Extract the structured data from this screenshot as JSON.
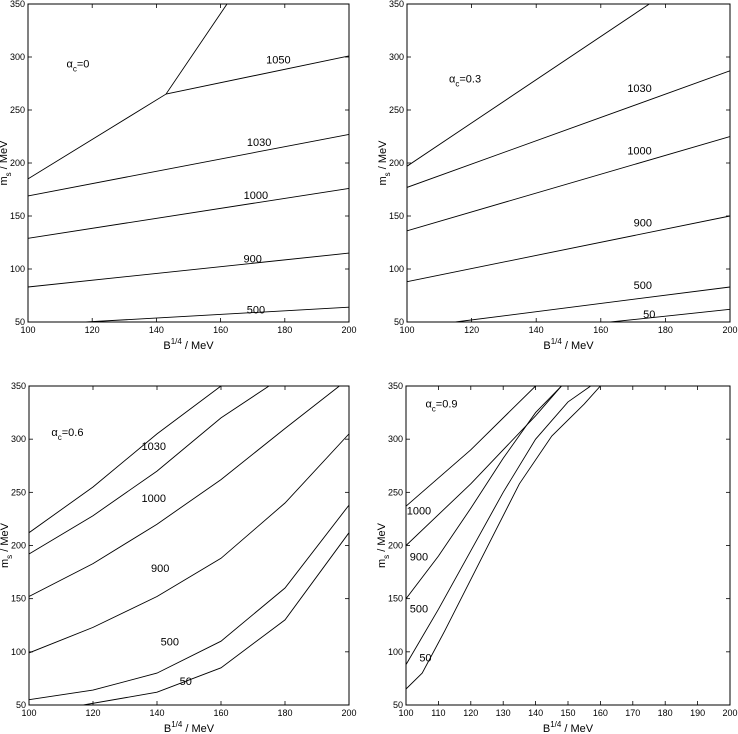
{
  "chart_data": [
    {
      "type": "line",
      "annotation": {
        "symbol": "α",
        "sub": "c",
        "value": "=0"
      },
      "xlabel": {
        "base": "B",
        "sup": "1/4",
        "unit": " / MeV"
      },
      "ylabel": {
        "base": "m",
        "sub": "s",
        "unit": " / MeV"
      },
      "xlim": [
        100,
        200
      ],
      "ylim": [
        50,
        350
      ],
      "xticks": [
        100,
        120,
        140,
        160,
        180,
        200
      ],
      "yticks": [
        50,
        100,
        150,
        200,
        250,
        300,
        350
      ],
      "series": [
        {
          "name": "",
          "points": [
            [
              100,
              185
            ],
            [
              143,
              265
            ],
            [
              162,
              350
            ]
          ]
        },
        {
          "name": "1050",
          "points": [
            [
              143,
              265
            ],
            [
              200,
              301
            ]
          ]
        },
        {
          "name": "1030",
          "points": [
            [
              100,
              169
            ],
            [
              200,
              227
            ]
          ]
        },
        {
          "name": "1000",
          "points": [
            [
              100,
              129
            ],
            [
              200,
              176
            ]
          ]
        },
        {
          "name": "900",
          "points": [
            [
              100,
              83
            ],
            [
              200,
              115
            ]
          ]
        },
        {
          "name": "500",
          "points": [
            [
              118,
              50
            ],
            [
              200,
              64
            ]
          ]
        }
      ],
      "curve_labels": [
        {
          "text": "1050",
          "x": 178,
          "y": 294
        },
        {
          "text": "1030",
          "x": 172,
          "y": 216
        },
        {
          "text": "1000",
          "x": 171,
          "y": 166
        },
        {
          "text": "900",
          "x": 170,
          "y": 106
        },
        {
          "text": "500",
          "x": 171,
          "y": 58
        }
      ],
      "annotation_pos": {
        "x": 112,
        "y": 290
      }
    },
    {
      "type": "line",
      "annotation": {
        "symbol": "α",
        "sub": "c",
        "value": "=0.3"
      },
      "xlabel": {
        "base": "B",
        "sup": "1/4",
        "unit": " / MeV"
      },
      "ylabel": {
        "base": "m",
        "sub": "s",
        "unit": " / MeV"
      },
      "xlim": [
        100,
        200
      ],
      "ylim": [
        50,
        350
      ],
      "xticks": [
        100,
        120,
        140,
        160,
        180,
        200
      ],
      "yticks": [
        50,
        100,
        150,
        200,
        250,
        300,
        350
      ],
      "series": [
        {
          "name": "",
          "points": [
            [
              100,
              197
            ],
            [
              175,
              350
            ]
          ]
        },
        {
          "name": "1030",
          "points": [
            [
              100,
              177
            ],
            [
              200,
              287
            ]
          ]
        },
        {
          "name": "1000",
          "points": [
            [
              100,
              136
            ],
            [
              200,
              225
            ]
          ]
        },
        {
          "name": "900",
          "points": [
            [
              100,
              88
            ],
            [
              200,
              150
            ]
          ]
        },
        {
          "name": "500",
          "points": [
            [
              115,
              50
            ],
            [
              200,
              83
            ]
          ]
        },
        {
          "name": "50",
          "points": [
            [
              163,
              50
            ],
            [
              200,
              62
            ]
          ]
        }
      ],
      "curve_labels": [
        {
          "text": "1030",
          "x": 172,
          "y": 267
        },
        {
          "text": "1000",
          "x": 172,
          "y": 208
        },
        {
          "text": "900",
          "x": 173,
          "y": 140
        },
        {
          "text": "500",
          "x": 173,
          "y": 81
        },
        {
          "text": "50",
          "x": 175,
          "y": 54
        }
      ],
      "annotation_pos": {
        "x": 113,
        "y": 276
      }
    },
    {
      "type": "line",
      "annotation": {
        "symbol": "α",
        "sub": "c",
        "value": "=0.6"
      },
      "xlabel": {
        "base": "B",
        "sup": "1/4",
        "unit": " / MeV"
      },
      "ylabel": {
        "base": "m",
        "sub": "s",
        "unit": " / MeV"
      },
      "xlim": [
        100,
        200
      ],
      "ylim": [
        50,
        350
      ],
      "xticks": [
        100,
        120,
        140,
        160,
        180,
        200
      ],
      "yticks": [
        50,
        100,
        150,
        200,
        250,
        300,
        350
      ],
      "series": [
        {
          "name": "",
          "points": [
            [
              100,
              212
            ],
            [
              120,
              255
            ],
            [
              140,
              305
            ],
            [
              160,
              350
            ]
          ]
        },
        {
          "name": "1030",
          "points": [
            [
              100,
              192
            ],
            [
              120,
              228
            ],
            [
              140,
              270
            ],
            [
              160,
              320
            ],
            [
              175,
              350
            ]
          ]
        },
        {
          "name": "1000",
          "points": [
            [
              100,
              152
            ],
            [
              120,
              183
            ],
            [
              140,
              220
            ],
            [
              160,
              262
            ],
            [
              180,
              310
            ],
            [
              197,
              350
            ]
          ]
        },
        {
          "name": "900",
          "points": [
            [
              100,
              99
            ],
            [
              120,
              123
            ],
            [
              140,
              152
            ],
            [
              160,
              188
            ],
            [
              180,
              240
            ],
            [
              200,
              305
            ]
          ]
        },
        {
          "name": "500",
          "points": [
            [
              100,
              55
            ],
            [
              120,
              64
            ],
            [
              140,
              80
            ],
            [
              160,
              110
            ],
            [
              180,
              160
            ],
            [
              200,
              238
            ]
          ]
        },
        {
          "name": "50",
          "points": [
            [
              117,
              50
            ],
            [
              140,
              62
            ],
            [
              160,
              85
            ],
            [
              180,
              130
            ],
            [
              200,
              212
            ]
          ]
        }
      ],
      "curve_labels": [
        {
          "text": "1030",
          "x": 139,
          "y": 290
        },
        {
          "text": "1000",
          "x": 139,
          "y": 241
        },
        {
          "text": "900",
          "x": 141,
          "y": 175
        },
        {
          "text": "500",
          "x": 144,
          "y": 106
        },
        {
          "text": "50",
          "x": 149,
          "y": 69
        }
      ],
      "annotation_pos": {
        "x": 107,
        "y": 303
      }
    },
    {
      "type": "line",
      "annotation": {
        "symbol": "α",
        "sub": "c",
        "value": "=0.9"
      },
      "xlabel": {
        "base": "B",
        "sup": "1/4",
        "unit": " / MeV"
      },
      "ylabel": {
        "base": "m",
        "sub": "s",
        "unit": " / MeV"
      },
      "xlim": [
        100,
        200
      ],
      "ylim": [
        50,
        350
      ],
      "xticks": [
        100,
        110,
        120,
        130,
        140,
        150,
        160,
        170,
        180,
        190,
        200
      ],
      "yticks": [
        50,
        100,
        150,
        200,
        250,
        300,
        350
      ],
      "series": [
        {
          "name": "",
          "points": [
            [
              100,
              237
            ],
            [
              120,
              290
            ],
            [
              140,
              350
            ]
          ]
        },
        {
          "name": "1000",
          "points": [
            [
              100,
              200
            ],
            [
              120,
              258
            ],
            [
              140,
              322
            ],
            [
              148,
              350
            ]
          ]
        },
        {
          "name": "900",
          "points": [
            [
              100,
              150
            ],
            [
              110,
              190
            ],
            [
              120,
              235
            ],
            [
              130,
              282
            ],
            [
              140,
              325
            ],
            [
              148,
              350
            ]
          ]
        },
        {
          "name": "500",
          "points": [
            [
              100,
              88
            ],
            [
              110,
              140
            ],
            [
              120,
              195
            ],
            [
              130,
              250
            ],
            [
              140,
              300
            ],
            [
              150,
              335
            ],
            [
              157,
              350
            ]
          ]
        },
        {
          "name": "50",
          "points": [
            [
              100,
              65
            ],
            [
              105,
              80
            ],
            [
              112,
              120
            ],
            [
              125,
              198
            ],
            [
              135,
              258
            ],
            [
              145,
              303
            ],
            [
              155,
              333
            ],
            [
              160,
              350
            ]
          ]
        }
      ],
      "curve_labels": [
        {
          "text": "1000",
          "x": 104,
          "y": 229
        },
        {
          "text": "900",
          "x": 104,
          "y": 186
        },
        {
          "text": "500",
          "x": 104,
          "y": 137
        },
        {
          "text": "50",
          "x": 106,
          "y": 91
        }
      ],
      "annotation_pos": {
        "x": 106,
        "y": 330
      }
    }
  ]
}
